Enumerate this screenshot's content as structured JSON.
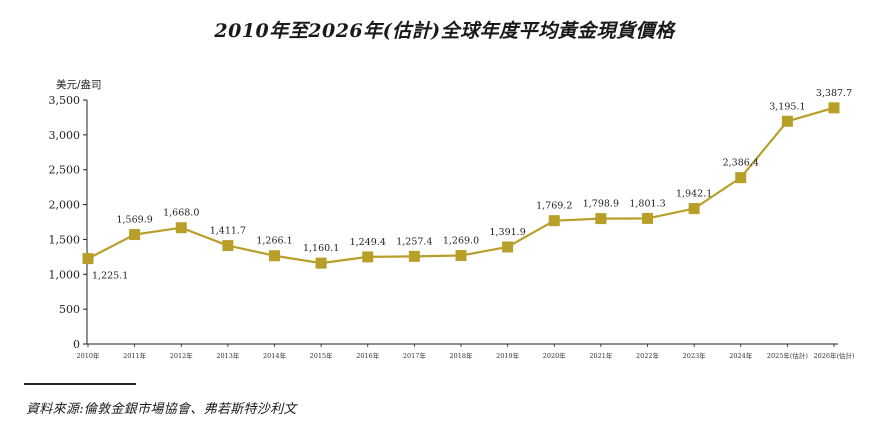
{
  "title": "2010年至2026年(估計)全球年度平均黃金現貨價格",
  "source": "資料來源:倫敦金銀市場協會、弗若斯特沙利文",
  "colors": {
    "series": "#b79f2a",
    "axis": "#222222"
  },
  "chart_data": {
    "type": "line",
    "title": "2010年至2026年(估計)全球年度平均黃金現貨價格",
    "ylabel": "美元/盎司",
    "xlabel": "",
    "ylim": [
      0,
      3500
    ],
    "yticks": [
      0,
      500,
      1000,
      1500,
      2000,
      2500,
      3000,
      3500
    ],
    "ytick_labels": [
      "0",
      "500",
      "1,000",
      "1,500",
      "2,000",
      "2,500",
      "3,000",
      "3,500"
    ],
    "grid": false,
    "marker": "square",
    "categories": [
      "2010年",
      "2011年",
      "2012年",
      "2013年",
      "2014年",
      "2015年",
      "2016年",
      "2017年",
      "2018年",
      "2019年",
      "2020年",
      "2021年",
      "2022年",
      "2023年",
      "2024年",
      "2025年(估計)",
      "2026年(估計)"
    ],
    "series": [
      {
        "values": [
          1225.1,
          1569.9,
          1668.0,
          1411.7,
          1266.1,
          1160.1,
          1249.4,
          1257.4,
          1269.0,
          1391.9,
          1769.2,
          1798.9,
          1801.3,
          1942.1,
          2386.4,
          3195.1,
          3387.7
        ],
        "labels": [
          "1,225.1",
          "1,569.9",
          "1,668.0",
          "1,411.7",
          "1,266.1",
          "1,160.1",
          "1,249.4",
          "1,257.4",
          "1,269.0",
          "1,391.9",
          "1,769.2",
          "1,798.9",
          "1,801.3",
          "1,942.1",
          "2,386.4",
          "3,195.1",
          "3,387.7"
        ]
      }
    ]
  }
}
